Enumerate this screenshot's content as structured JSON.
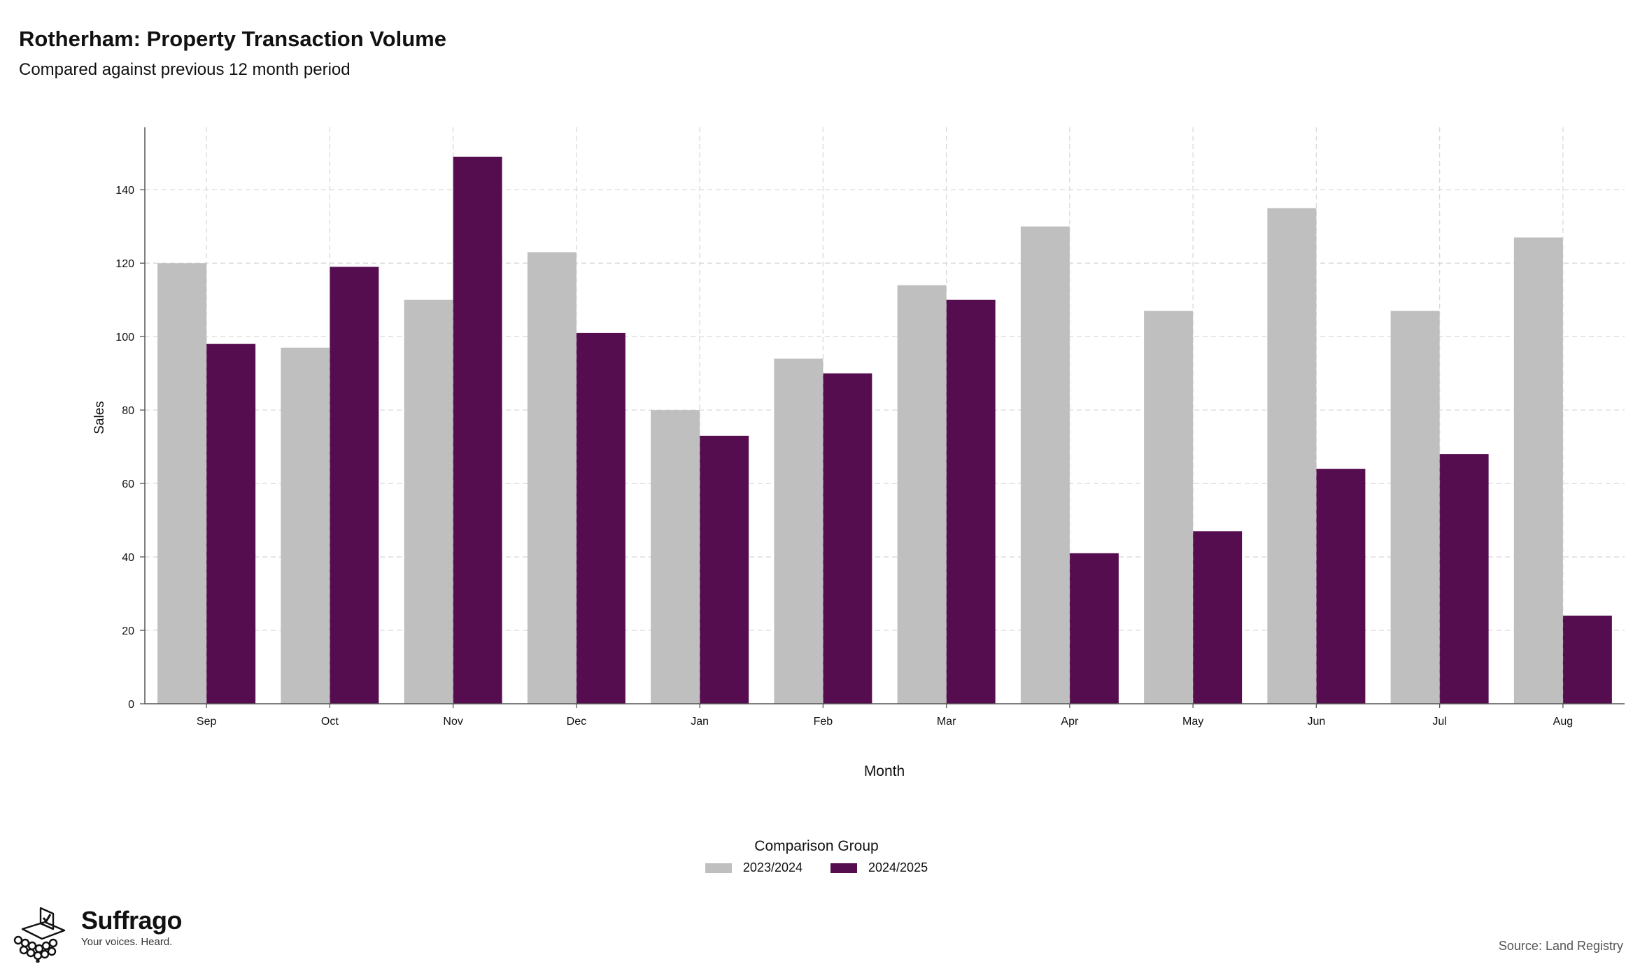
{
  "title": "Rotherham: Property Transaction Volume",
  "subtitle": "Compared against previous 12 month period",
  "chart_data": {
    "type": "bar",
    "categories": [
      "Sep",
      "Oct",
      "Nov",
      "Dec",
      "Jan",
      "Feb",
      "Mar",
      "Apr",
      "May",
      "Jun",
      "Jul",
      "Aug"
    ],
    "series": [
      {
        "name": "2023/2024",
        "color": "#bfbfbf",
        "values": [
          120,
          97,
          110,
          123,
          80,
          94,
          114,
          130,
          107,
          135,
          107,
          127
        ]
      },
      {
        "name": "2024/2025",
        "color": "#560d50",
        "values": [
          98,
          119,
          149,
          101,
          73,
          90,
          110,
          41,
          47,
          64,
          68,
          24
        ]
      }
    ],
    "xlabel": "Month",
    "ylabel": "Sales",
    "ylim": [
      0,
      157
    ],
    "yticks": [
      0,
      20,
      40,
      60,
      80,
      100,
      120,
      140
    ],
    "grid": true,
    "legend_title": "Comparison Group",
    "legend_position": "bottom"
  },
  "branding": {
    "name": "Suffrago",
    "tagline": "Your voices. Heard.",
    "logo_icon": "ballot-box-icon"
  },
  "source": "Source: Land Registry"
}
